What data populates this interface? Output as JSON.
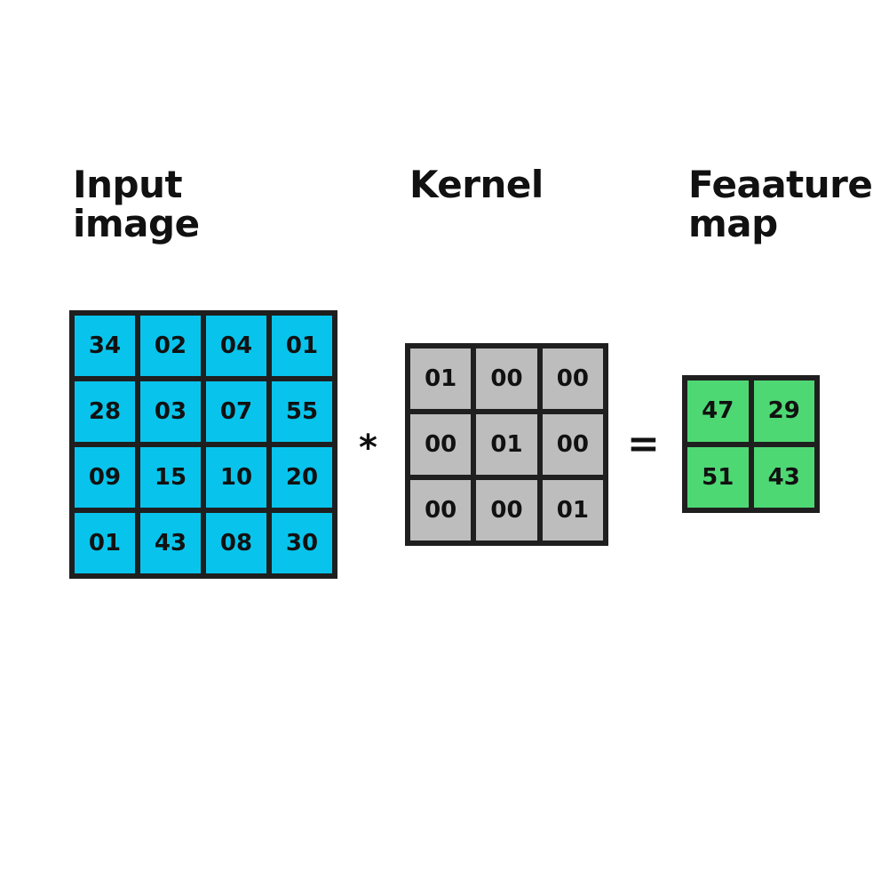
{
  "titles": {
    "input": [
      "Input",
      "image"
    ],
    "kernel": [
      "Kernel"
    ],
    "feature": [
      "Feaature",
      "map"
    ]
  },
  "operators": {
    "convolution": "*",
    "equals": "="
  },
  "colors": {
    "input_cell": "#08c4ec",
    "kernel_cell": "#bdbdbd",
    "feature_cell": "#4ed874",
    "border": "#1f1f1f"
  },
  "input_matrix": [
    [
      "34",
      "02",
      "04",
      "01"
    ],
    [
      "28",
      "03",
      "07",
      "55"
    ],
    [
      "09",
      "15",
      "10",
      "20"
    ],
    [
      "01",
      "43",
      "08",
      "30"
    ]
  ],
  "kernel_matrix": [
    [
      "01",
      "00",
      "00"
    ],
    [
      "00",
      "01",
      "00"
    ],
    [
      "00",
      "00",
      "01"
    ]
  ],
  "feature_matrix": [
    [
      "47",
      "29"
    ],
    [
      "51",
      "43"
    ]
  ]
}
